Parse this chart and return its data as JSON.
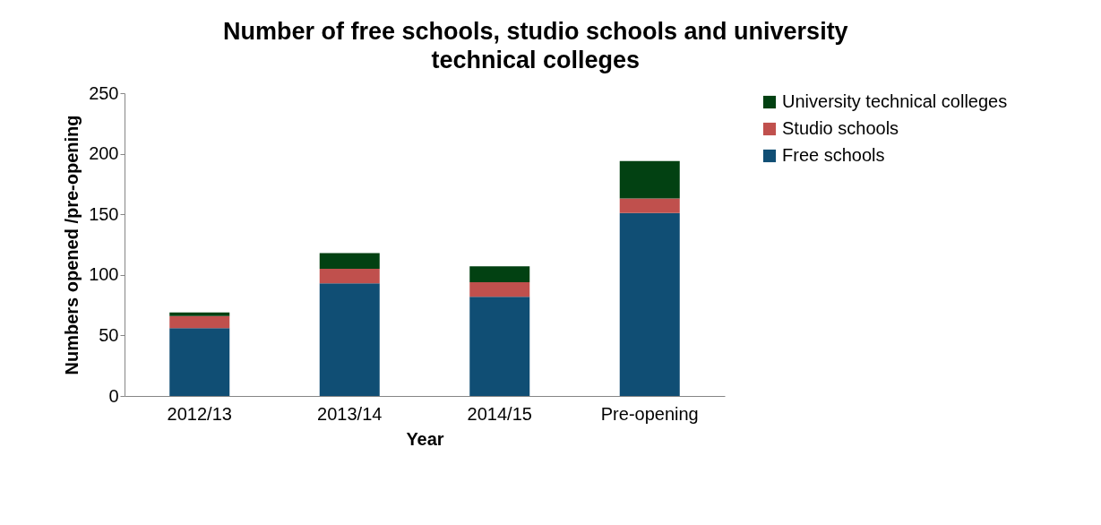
{
  "chart_data": {
    "type": "bar",
    "stacked": true,
    "title": "Number of free schools, studio schools and university technical colleges",
    "xlabel": "Year",
    "ylabel": "Numbers opened /pre-opening",
    "categories": [
      "2012/13",
      "2013/14",
      "2014/15",
      "Pre-opening"
    ],
    "series": [
      {
        "name": "Free schools",
        "color": "#104e74",
        "values": [
          56,
          93,
          82,
          151
        ]
      },
      {
        "name": "Studio schools",
        "color": "#c0504d",
        "values": [
          10,
          12,
          12,
          12
        ]
      },
      {
        "name": "University technical colleges",
        "color": "#024112",
        "values": [
          3,
          13,
          13,
          31
        ]
      }
    ],
    "ylim": [
      0,
      250
    ],
    "yticks": [
      0,
      50,
      100,
      150,
      200,
      250
    ],
    "grid": false,
    "legend": "right"
  }
}
